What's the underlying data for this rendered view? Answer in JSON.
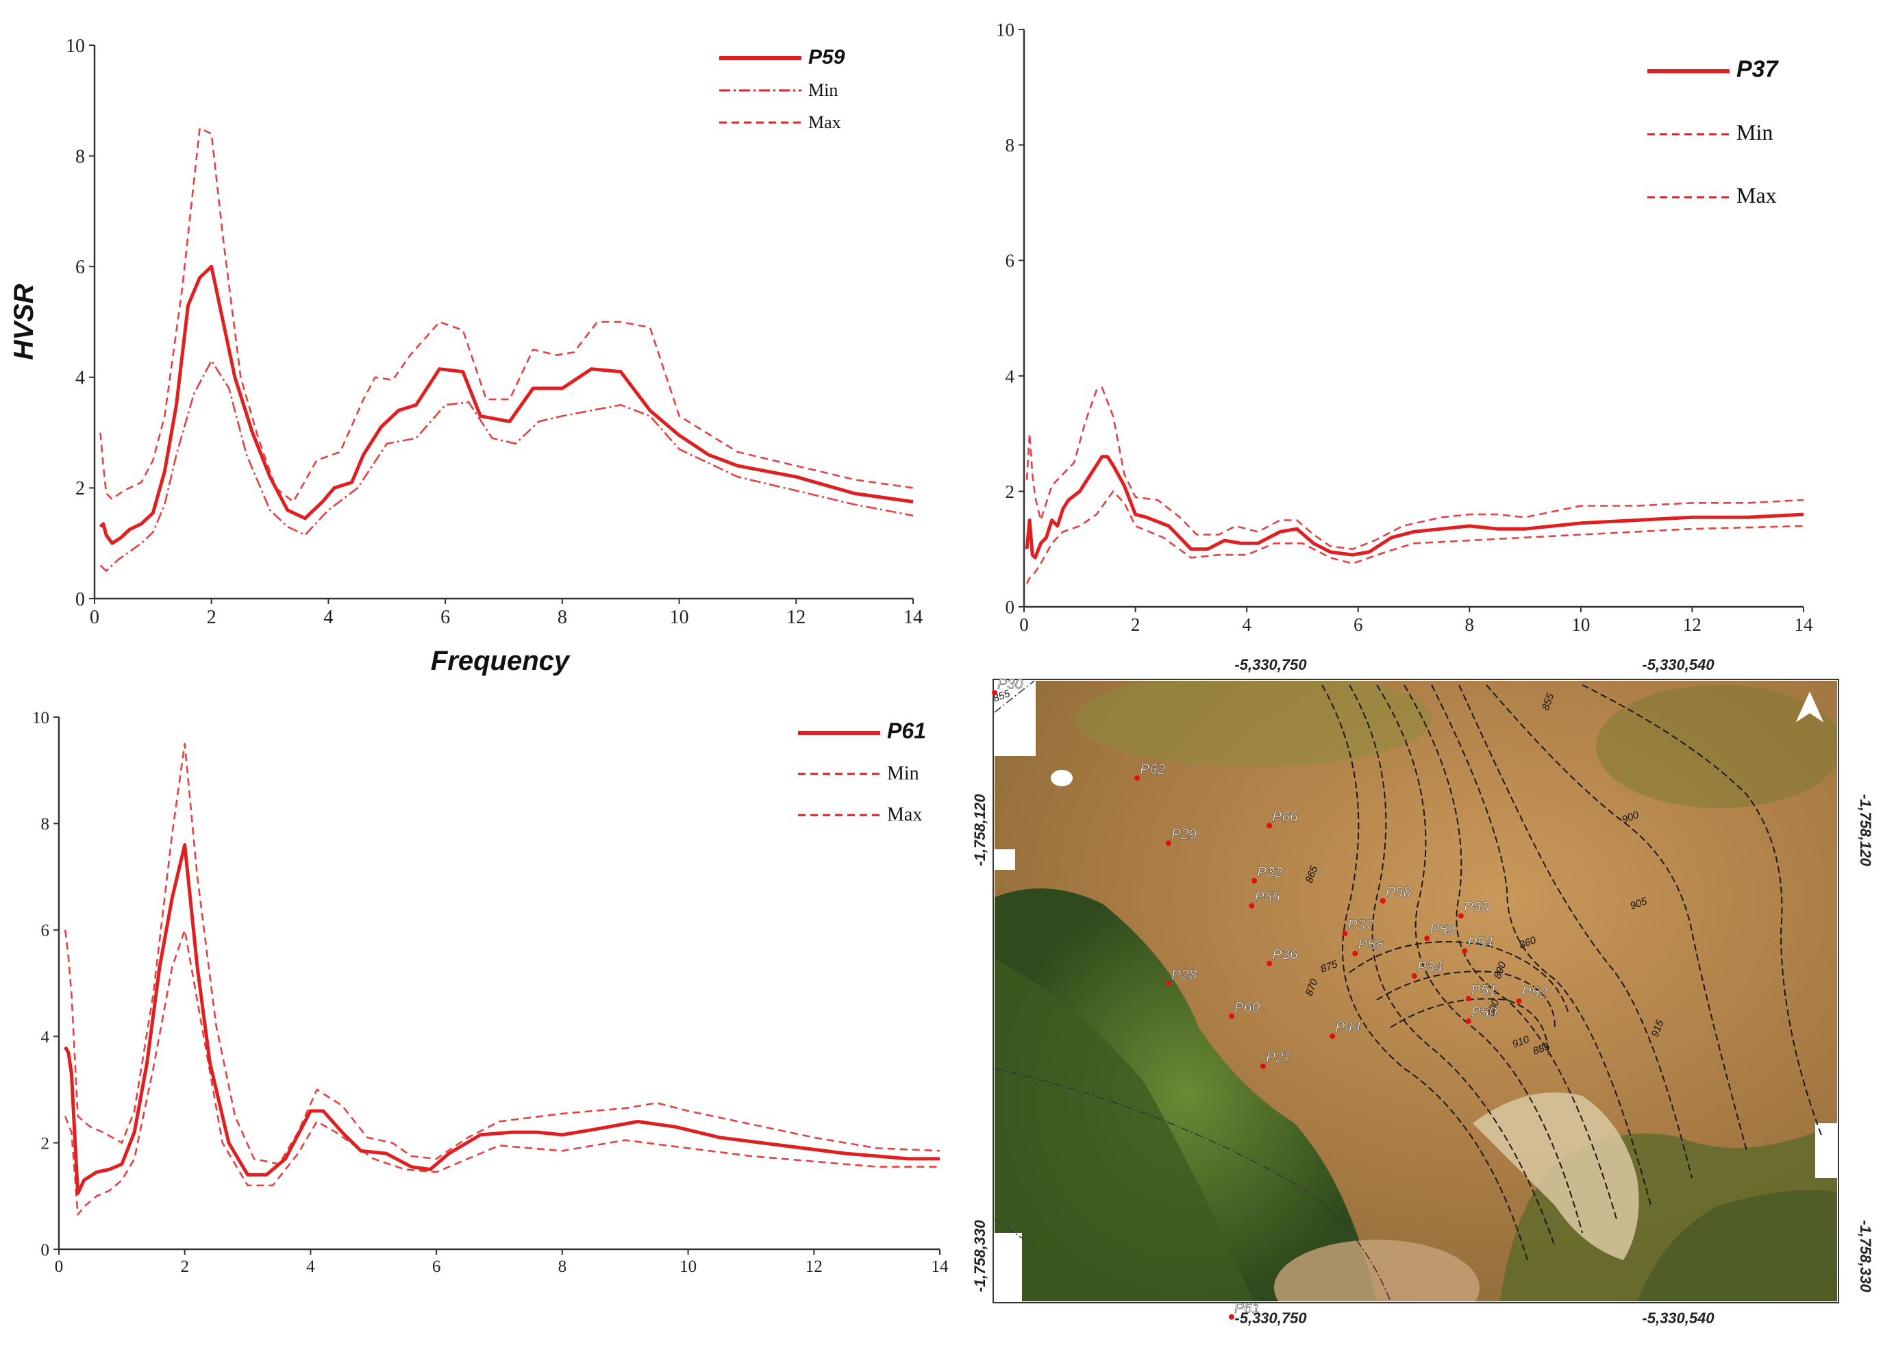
{
  "chart_data": [
    {
      "type": "line",
      "id": "p59",
      "title": "",
      "xlabel": "Frequency",
      "ylabel": "HVSR",
      "xlim": [
        0,
        14
      ],
      "ylim": [
        0,
        10
      ],
      "xticks": [
        0,
        2,
        4,
        6,
        8,
        10,
        12,
        14
      ],
      "yticks": [
        0,
        2,
        4,
        6,
        8,
        10
      ],
      "legend_position": "top-right",
      "series": [
        {
          "name": "P59",
          "style": "solid",
          "x": [
            0.1,
            0.15,
            0.2,
            0.3,
            0.45,
            0.6,
            0.8,
            1.0,
            1.2,
            1.4,
            1.6,
            1.8,
            2.0,
            2.2,
            2.4,
            2.7,
            3.0,
            3.3,
            3.6,
            3.9,
            4.1,
            4.4,
            4.6,
            4.9,
            5.2,
            5.5,
            5.9,
            6.3,
            6.6,
            7.1,
            7.5,
            8.0,
            8.5,
            9.0,
            9.5,
            10.0,
            10.5,
            11.0,
            12.0,
            13.0,
            14.0
          ],
          "y": [
            1.3,
            1.35,
            1.15,
            1.0,
            1.1,
            1.25,
            1.35,
            1.55,
            2.3,
            3.5,
            5.3,
            5.8,
            6.0,
            5.0,
            4.0,
            3.0,
            2.2,
            1.6,
            1.45,
            1.75,
            2.0,
            2.1,
            2.6,
            3.1,
            3.4,
            3.5,
            4.15,
            4.1,
            3.3,
            3.2,
            3.8,
            3.8,
            4.15,
            4.1,
            3.4,
            2.95,
            2.6,
            2.4,
            2.2,
            1.9,
            1.75
          ]
        },
        {
          "name": "Min",
          "style": "dashdot",
          "x": [
            0.1,
            0.2,
            0.4,
            0.6,
            0.8,
            1.0,
            1.2,
            1.4,
            1.7,
            2.0,
            2.3,
            2.6,
            3.0,
            3.3,
            3.6,
            4.0,
            4.5,
            5.0,
            5.5,
            6.0,
            6.4,
            6.8,
            7.2,
            7.6,
            8.0,
            8.5,
            9.0,
            9.5,
            10.0,
            11.0,
            12.0,
            13.0,
            14.0
          ],
          "y": [
            0.6,
            0.5,
            0.7,
            0.85,
            1.0,
            1.2,
            1.7,
            2.6,
            3.7,
            4.3,
            3.8,
            2.6,
            1.6,
            1.3,
            1.15,
            1.6,
            2.0,
            2.8,
            2.9,
            3.5,
            3.55,
            2.9,
            2.8,
            3.2,
            3.3,
            3.4,
            3.5,
            3.3,
            2.7,
            2.2,
            1.95,
            1.7,
            1.5
          ]
        },
        {
          "name": "Max",
          "style": "dashed",
          "x": [
            0.1,
            0.15,
            0.2,
            0.3,
            0.5,
            0.8,
            1.0,
            1.2,
            1.5,
            1.8,
            2.0,
            2.2,
            2.5,
            2.8,
            3.1,
            3.4,
            3.8,
            4.2,
            4.6,
            4.8,
            5.1,
            5.4,
            5.9,
            6.3,
            6.7,
            7.1,
            7.5,
            7.9,
            8.2,
            8.6,
            9.0,
            9.5,
            10.0,
            11.0,
            12.0,
            13.0,
            14.0
          ],
          "y": [
            3.0,
            2.4,
            1.9,
            1.8,
            1.95,
            2.1,
            2.5,
            3.3,
            5.6,
            8.5,
            8.4,
            6.5,
            4.0,
            2.9,
            2.0,
            1.75,
            2.5,
            2.65,
            3.6,
            4.0,
            3.95,
            4.4,
            5.0,
            4.85,
            3.6,
            3.6,
            4.5,
            4.4,
            4.45,
            5.0,
            5.0,
            4.9,
            3.3,
            2.65,
            2.4,
            2.15,
            2.0
          ]
        }
      ]
    },
    {
      "type": "line",
      "id": "p37",
      "title": "",
      "xlabel": "",
      "ylabel": "",
      "xlim": [
        0,
        14
      ],
      "ylim": [
        0,
        10
      ],
      "xticks": [
        0,
        2,
        4,
        6,
        8,
        10,
        12,
        14
      ],
      "yticks": [
        0,
        2,
        4,
        6,
        8,
        10
      ],
      "legend_position": "top-right",
      "series": [
        {
          "name": "P37",
          "style": "solid",
          "x": [
            0.05,
            0.1,
            0.15,
            0.2,
            0.3,
            0.4,
            0.5,
            0.6,
            0.7,
            0.8,
            1.0,
            1.2,
            1.4,
            1.5,
            1.6,
            1.8,
            2.0,
            2.2,
            2.6,
            3.0,
            3.3,
            3.6,
            3.9,
            4.2,
            4.6,
            4.9,
            5.2,
            5.5,
            5.9,
            6.2,
            6.6,
            7.0,
            7.5,
            8.0,
            8.5,
            9.0,
            9.5,
            10.0,
            11.0,
            12.0,
            13.0,
            14.0
          ],
          "y": [
            1.0,
            1.5,
            0.9,
            0.85,
            1.1,
            1.2,
            1.5,
            1.4,
            1.7,
            1.85,
            2.0,
            2.3,
            2.6,
            2.6,
            2.45,
            2.1,
            1.6,
            1.55,
            1.4,
            1.0,
            1.0,
            1.15,
            1.1,
            1.1,
            1.3,
            1.35,
            1.1,
            0.95,
            0.9,
            0.95,
            1.2,
            1.3,
            1.35,
            1.4,
            1.35,
            1.35,
            1.4,
            1.45,
            1.5,
            1.55,
            1.55,
            1.6
          ]
        },
        {
          "name": "Min",
          "style": "dashed",
          "x": [
            0.05,
            0.1,
            0.2,
            0.3,
            0.5,
            0.7,
            1.0,
            1.3,
            1.6,
            1.8,
            2.0,
            2.5,
            3.0,
            3.5,
            4.0,
            4.5,
            5.0,
            5.5,
            5.9,
            6.5,
            7.0,
            8.0,
            9.0,
            10.0,
            12.0,
            14.0
          ],
          "y": [
            0.4,
            0.5,
            0.6,
            0.75,
            1.1,
            1.3,
            1.4,
            1.6,
            2.0,
            1.8,
            1.4,
            1.2,
            0.85,
            0.9,
            0.9,
            1.1,
            1.1,
            0.85,
            0.75,
            0.95,
            1.1,
            1.15,
            1.2,
            1.25,
            1.35,
            1.4
          ]
        },
        {
          "name": "Max",
          "style": "dashed",
          "x": [
            0.05,
            0.1,
            0.15,
            0.2,
            0.3,
            0.5,
            0.7,
            0.9,
            1.1,
            1.3,
            1.4,
            1.6,
            1.8,
            2.0,
            2.4,
            2.8,
            3.1,
            3.5,
            3.8,
            4.2,
            4.6,
            4.9,
            5.2,
            5.5,
            5.9,
            6.3,
            6.8,
            7.5,
            8.0,
            8.5,
            9.0,
            9.5,
            10.0,
            11.0,
            12.0,
            13.0,
            14.0
          ],
          "y": [
            2.2,
            3.0,
            2.3,
            1.9,
            1.5,
            2.1,
            2.3,
            2.5,
            3.2,
            3.75,
            3.8,
            3.3,
            2.3,
            1.9,
            1.85,
            1.55,
            1.25,
            1.25,
            1.4,
            1.3,
            1.5,
            1.5,
            1.25,
            1.05,
            1.0,
            1.15,
            1.4,
            1.55,
            1.6,
            1.6,
            1.55,
            1.65,
            1.75,
            1.75,
            1.8,
            1.8,
            1.85
          ]
        }
      ]
    },
    {
      "type": "line",
      "id": "p61",
      "title": "",
      "xlabel": "",
      "ylabel": "",
      "xlim": [
        0,
        14
      ],
      "ylim": [
        0,
        10
      ],
      "xticks": [
        0,
        2,
        4,
        6,
        8,
        10,
        12,
        14
      ],
      "yticks": [
        0,
        2,
        4,
        6,
        8,
        10
      ],
      "legend_position": "top-right",
      "series": [
        {
          "name": "P61",
          "style": "solid",
          "x": [
            0.1,
            0.15,
            0.2,
            0.3,
            0.4,
            0.6,
            0.8,
            1.0,
            1.2,
            1.4,
            1.6,
            1.8,
            2.0,
            2.2,
            2.4,
            2.7,
            3.0,
            3.3,
            3.6,
            4.0,
            4.2,
            4.5,
            4.8,
            5.2,
            5.6,
            5.9,
            6.2,
            6.7,
            7.2,
            7.6,
            8.0,
            8.5,
            9.2,
            9.8,
            10.5,
            11.5,
            12.5,
            13.5,
            14.0
          ],
          "y": [
            3.8,
            3.7,
            3.3,
            1.05,
            1.3,
            1.45,
            1.5,
            1.6,
            2.2,
            3.5,
            5.3,
            6.6,
            7.6,
            5.3,
            3.5,
            2.0,
            1.4,
            1.4,
            1.7,
            2.6,
            2.6,
            2.2,
            1.85,
            1.8,
            1.55,
            1.5,
            1.8,
            2.15,
            2.2,
            2.2,
            2.15,
            2.25,
            2.4,
            2.3,
            2.1,
            1.95,
            1.8,
            1.7,
            1.7
          ]
        },
        {
          "name": "Min",
          "style": "dashed",
          "x": [
            0.1,
            0.2,
            0.3,
            0.4,
            0.6,
            0.8,
            1.0,
            1.2,
            1.5,
            1.8,
            2.0,
            2.3,
            2.6,
            3.0,
            3.4,
            3.8,
            4.1,
            4.4,
            5.0,
            5.5,
            6.0,
            6.5,
            7.0,
            8.0,
            9.0,
            10.0,
            11.0,
            12.0,
            13.0,
            14.0
          ],
          "y": [
            2.5,
            2.2,
            0.65,
            0.8,
            1.0,
            1.1,
            1.3,
            1.7,
            3.4,
            5.3,
            6.0,
            4.0,
            2.0,
            1.2,
            1.2,
            1.8,
            2.4,
            2.2,
            1.7,
            1.5,
            1.45,
            1.7,
            1.95,
            1.85,
            2.05,
            1.9,
            1.75,
            1.65,
            1.55,
            1.55
          ]
        },
        {
          "name": "Max",
          "style": "dashed",
          "x": [
            0.1,
            0.15,
            0.2,
            0.3,
            0.5,
            0.7,
            1.0,
            1.2,
            1.5,
            1.8,
            2.0,
            2.2,
            2.5,
            2.8,
            3.1,
            3.5,
            3.8,
            4.1,
            4.5,
            4.9,
            5.3,
            5.6,
            6.0,
            6.5,
            7.0,
            8.0,
            9.0,
            9.5,
            10.0,
            11.0,
            12.0,
            13.0,
            14.0
          ],
          "y": [
            6.0,
            5.5,
            4.8,
            2.5,
            2.3,
            2.2,
            2.0,
            2.6,
            4.8,
            7.8,
            9.5,
            7.0,
            4.2,
            2.5,
            1.7,
            1.6,
            2.2,
            3.0,
            2.7,
            2.1,
            2.0,
            1.75,
            1.7,
            2.1,
            2.4,
            2.55,
            2.65,
            2.75,
            2.6,
            2.35,
            2.1,
            1.9,
            1.85
          ]
        }
      ]
    }
  ],
  "map": {
    "top_coords": [
      "-5,330,750",
      "-5,330,540"
    ],
    "bottom_coords": [
      "-5,330,750",
      "-5,330,540"
    ],
    "left_coords": [
      "-1,758,120",
      "-1,758,330"
    ],
    "right_coords": [
      "-1,758,120",
      "-1,758,330"
    ],
    "points": [
      "P30",
      "P62",
      "P66",
      "P29",
      "P32",
      "P55",
      "P58",
      "P53",
      "P37",
      "P59",
      "P56",
      "P54",
      "P36",
      "P34",
      "P28",
      "P51",
      "P52",
      "P60",
      "P50",
      "P44",
      "P27",
      "P61"
    ],
    "contour_labels": [
      "855",
      "855",
      "900",
      "865",
      "905",
      "870",
      "875",
      "890",
      "860",
      "880",
      "910",
      "915",
      "885"
    ]
  }
}
